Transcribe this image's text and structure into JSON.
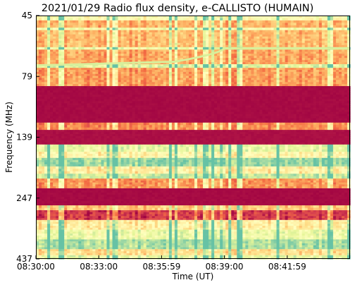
{
  "chart_data": {
    "type": "heatmap",
    "title": "2021/01/29  Radio flux density, e-CALLISTO (HUMAIN)",
    "xlabel": "Time (UT)",
    "ylabel": "Frequency (MHz)",
    "x_ticks": [
      "08:30:00",
      "08:33:00",
      "08:35:59",
      "08:39:00",
      "08:41:59"
    ],
    "y_ticks": [
      "45",
      "79",
      "139",
      "247",
      "437"
    ],
    "x_range": [
      "08:30:00",
      "08:45:00"
    ],
    "y_range": [
      45,
      437
    ],
    "y_inverted": true,
    "colormap": "Spectral",
    "colors": {
      "low": "#9e0142",
      "mid": "#f46d43",
      "high": "#fee08b",
      "peak": "#e6f598",
      "top": "#66c2a5"
    },
    "bands": [
      {
        "from": 0.0,
        "to": 0.02,
        "level": 0.62
      },
      {
        "from": 0.02,
        "to": 0.05,
        "level": 0.38
      },
      {
        "from": 0.05,
        "to": 0.06,
        "level": 0.66
      },
      {
        "from": 0.06,
        "to": 0.13,
        "level": 0.4
      },
      {
        "from": 0.13,
        "to": 0.14,
        "level": 0.7
      },
      {
        "from": 0.14,
        "to": 0.2,
        "level": 0.36
      },
      {
        "from": 0.2,
        "to": 0.215,
        "level": 0.74
      },
      {
        "from": 0.215,
        "to": 0.29,
        "level": 0.34
      },
      {
        "from": 0.29,
        "to": 0.44,
        "level": 0.02
      },
      {
        "from": 0.44,
        "to": 0.47,
        "level": 0.3
      },
      {
        "from": 0.47,
        "to": 0.53,
        "level": 0.03
      },
      {
        "from": 0.53,
        "to": 0.56,
        "level": 0.72
      },
      {
        "from": 0.56,
        "to": 0.585,
        "level": 0.58
      },
      {
        "from": 0.585,
        "to": 0.62,
        "level": 0.9
      },
      {
        "from": 0.62,
        "to": 0.65,
        "level": 0.55
      },
      {
        "from": 0.65,
        "to": 0.67,
        "level": 0.8
      },
      {
        "from": 0.67,
        "to": 0.71,
        "level": 0.32
      },
      {
        "from": 0.71,
        "to": 0.78,
        "level": 0.02
      },
      {
        "from": 0.78,
        "to": 0.8,
        "level": 0.44
      },
      {
        "from": 0.8,
        "to": 0.84,
        "level": 0.12
      },
      {
        "from": 0.84,
        "to": 0.88,
        "level": 0.55
      },
      {
        "from": 0.88,
        "to": 0.92,
        "level": 0.7
      },
      {
        "from": 0.92,
        "to": 0.96,
        "level": 0.86
      },
      {
        "from": 0.96,
        "to": 0.985,
        "level": 0.5
      },
      {
        "from": 0.985,
        "to": 1.0,
        "level": 0.72
      }
    ]
  }
}
